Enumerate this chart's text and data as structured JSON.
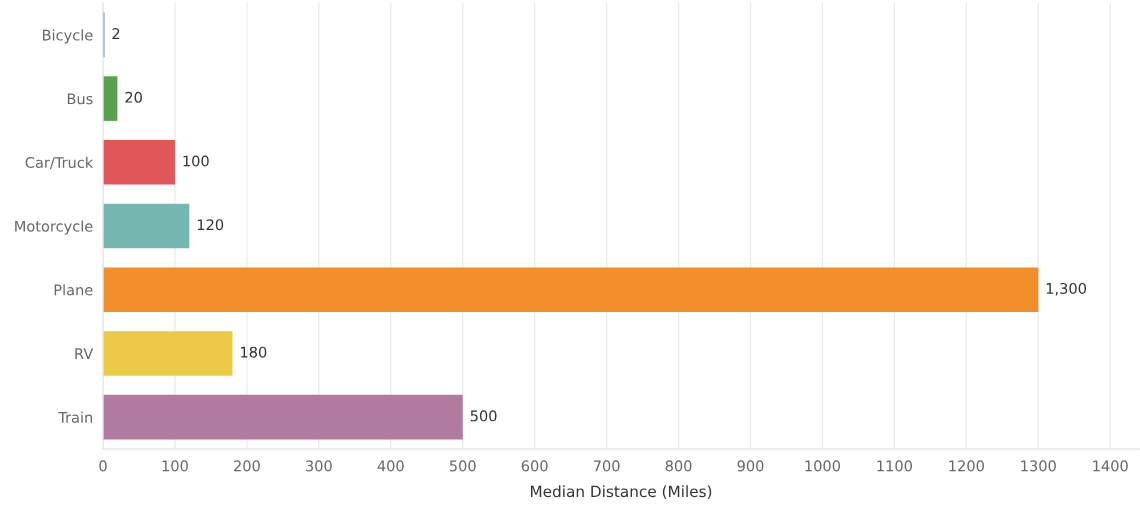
{
  "chart_data": {
    "type": "bar",
    "orientation": "horizontal",
    "xlabel": "Median Distance (Miles)",
    "categories": [
      "Bicycle",
      "Bus",
      "Car/Truck",
      "Motorcycle",
      "Plane",
      "RV",
      "Train"
    ],
    "values": [
      2,
      20,
      100,
      120,
      1300,
      180,
      500
    ],
    "colors": [
      "#4e79a7",
      "#59a14f",
      "#e15759",
      "#76b7b2",
      "#f28e2b",
      "#edc948",
      "#b07aa1"
    ],
    "value_labels": [
      "2",
      "20",
      "100",
      "120",
      "1,300",
      "180",
      "500"
    ],
    "xlim": [
      0,
      1440
    ],
    "xticks": [
      0,
      100,
      200,
      300,
      400,
      500,
      600,
      700,
      800,
      900,
      1000,
      1100,
      1200,
      1300,
      1400
    ],
    "grid": "x",
    "legend": false
  }
}
